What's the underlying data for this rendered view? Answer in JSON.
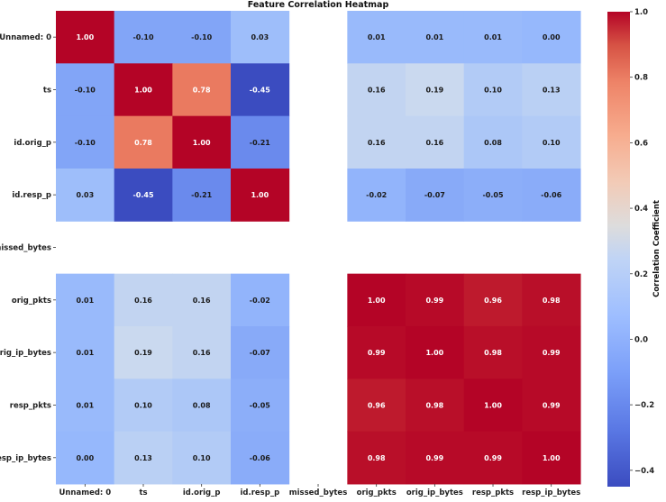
{
  "chart_data": {
    "type": "heatmap",
    "title": "Feature Correlation Heatmap",
    "variables": [
      "Unnamed: 0",
      "ts",
      "id.orig_p",
      "id.resp_p",
      "missed_bytes",
      "orig_pkts",
      "orig_ip_bytes",
      "resp_pkts",
      "resp_ip_bytes"
    ],
    "values": [
      [
        1.0,
        -0.1,
        -0.1,
        0.03,
        null,
        0.01,
        0.01,
        0.01,
        0.0
      ],
      [
        -0.1,
        1.0,
        0.78,
        -0.45,
        null,
        0.16,
        0.19,
        0.1,
        0.13
      ],
      [
        -0.1,
        0.78,
        1.0,
        -0.21,
        null,
        0.16,
        0.16,
        0.08,
        0.1
      ],
      [
        0.03,
        -0.45,
        -0.21,
        1.0,
        null,
        -0.02,
        -0.07,
        -0.05,
        -0.06
      ],
      [
        null,
        null,
        null,
        null,
        null,
        null,
        null,
        null,
        null
      ],
      [
        0.01,
        0.16,
        0.16,
        -0.02,
        null,
        1.0,
        0.99,
        0.96,
        0.98
      ],
      [
        0.01,
        0.19,
        0.16,
        -0.07,
        null,
        0.99,
        1.0,
        0.98,
        0.99
      ],
      [
        0.01,
        0.1,
        0.08,
        -0.05,
        null,
        0.96,
        0.98,
        1.0,
        0.99
      ],
      [
        0.0,
        0.13,
        0.1,
        -0.06,
        null,
        0.98,
        0.99,
        0.99,
        1.0
      ]
    ],
    "colorbar": {
      "label": "Correlation Coefficient",
      "range": [
        -0.45,
        1.0
      ],
      "ticks": [
        -0.4,
        -0.2,
        0.0,
        0.2,
        0.4,
        0.6,
        0.8,
        1.0
      ],
      "colormap": "coolwarm",
      "colors": {
        "low": "#3b4cc0",
        "mid": "#dddddd",
        "high": "#b40426"
      }
    },
    "legend": "right",
    "grid": false
  }
}
